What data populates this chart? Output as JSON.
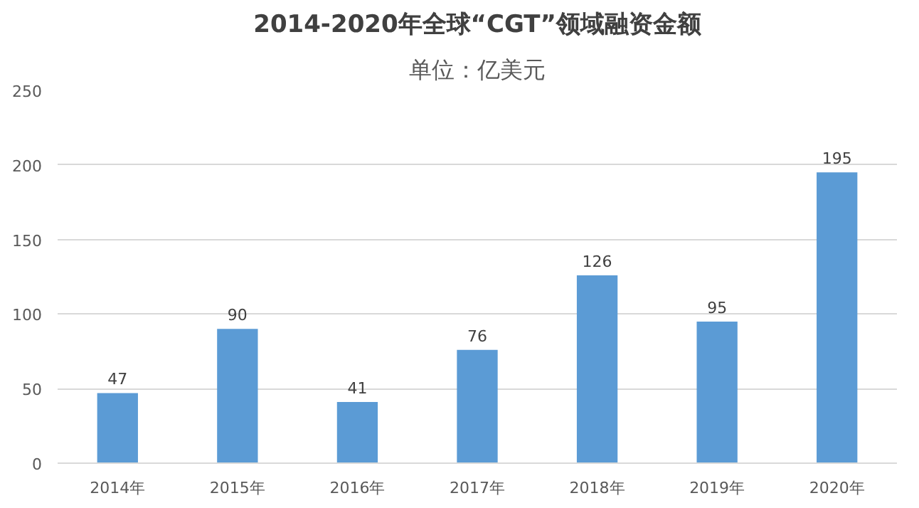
{
  "chart_data": {
    "type": "bar",
    "title": "2014-2020年全球“CGT”领域融资金额",
    "subtitle": "单位：亿美元",
    "categories": [
      "2014年",
      "2015年",
      "2016年",
      "2017年",
      "2018年",
      "2019年",
      "2020年"
    ],
    "values": [
      47,
      90,
      41,
      76,
      126,
      95,
      195
    ],
    "color": "#5b9bd5",
    "ylim": [
      0,
      250
    ],
    "yticks": [
      0,
      50,
      100,
      150,
      200,
      250
    ],
    "grid": "y",
    "data_labels": true
  }
}
